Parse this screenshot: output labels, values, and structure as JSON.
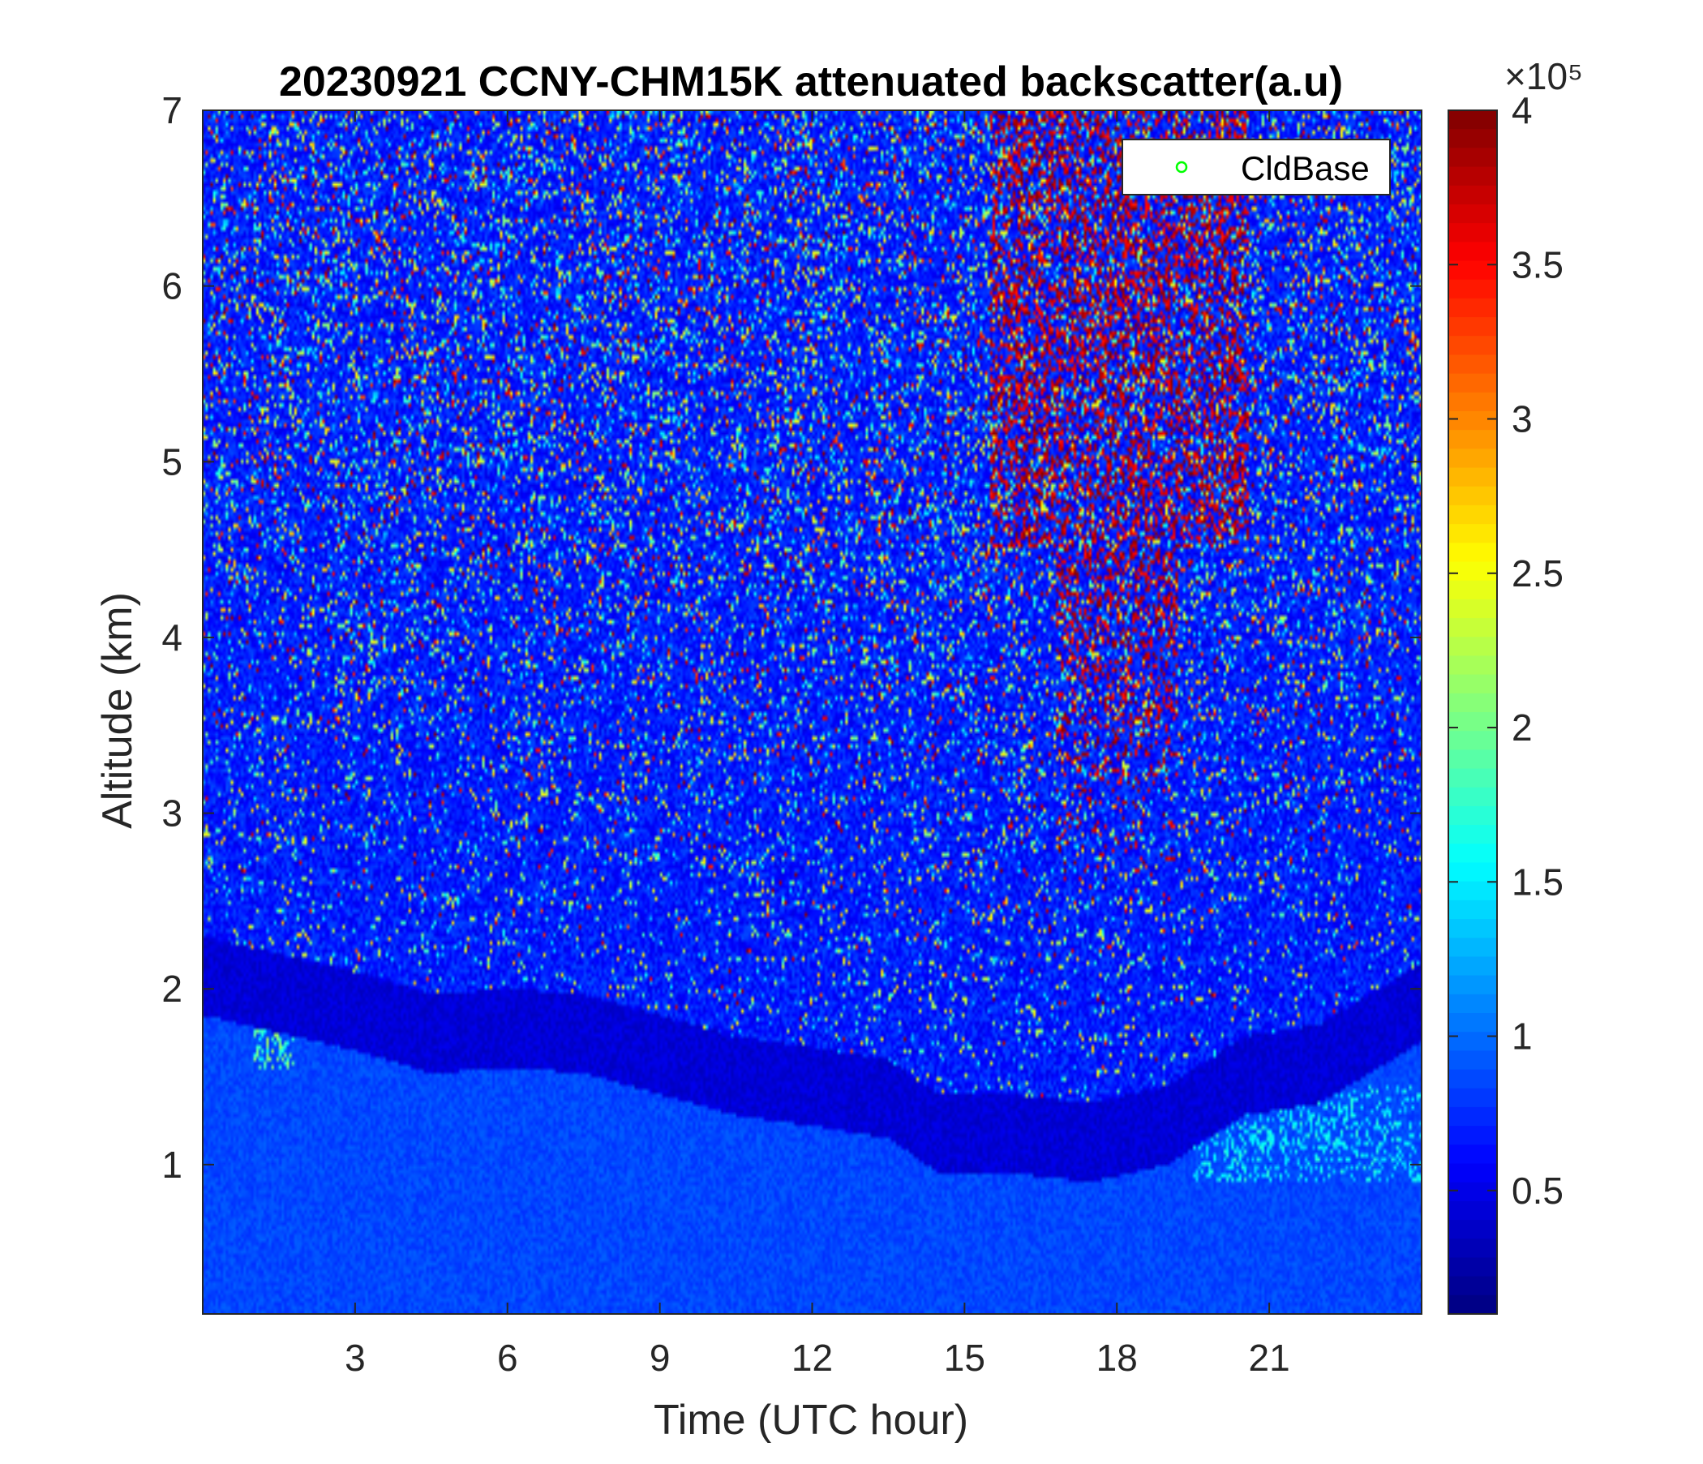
{
  "chart_data": {
    "type": "heatmap",
    "title": "20230921 CCNY-CHM15K attenuated backscatter(a.u)",
    "xlabel": "Time (UTC hour)",
    "ylabel": "Altitude (km)",
    "xlim": [
      0,
      24
    ],
    "ylim": [
      0.15,
      7
    ],
    "x_ticks": [
      3,
      6,
      9,
      12,
      15,
      18,
      21
    ],
    "x_tick_labels": [
      "3",
      "6",
      "9",
      "12",
      "15",
      "18",
      "21"
    ],
    "y_ticks": [
      1,
      2,
      3,
      4,
      5,
      6,
      7
    ],
    "y_tick_labels": [
      "1",
      "2",
      "3",
      "4",
      "5",
      "6",
      "7"
    ],
    "colormap": "jet",
    "colorbar": {
      "range": [
        0.1,
        4
      ],
      "exponent_label": "×10⁵",
      "ticks": [
        0.5,
        1,
        1.5,
        2,
        2.5,
        3,
        3.5,
        4
      ],
      "tick_labels": [
        "0.5",
        "1",
        "1.5",
        "2",
        "2.5",
        "3",
        "3.5",
        "4"
      ],
      "unit_scale": 100000
    },
    "legend": {
      "position": "top-right",
      "entries": [
        {
          "label": "CldBase",
          "marker": "circle",
          "color": "#00ff00"
        }
      ]
    },
    "features": {
      "boundary_layer_top_km": [
        [
          0,
          1.95
        ],
        [
          1.5,
          1.85
        ],
        [
          3,
          1.75
        ],
        [
          4.5,
          1.62
        ],
        [
          6,
          1.65
        ],
        [
          7.5,
          1.62
        ],
        [
          9,
          1.5
        ],
        [
          10.5,
          1.38
        ],
        [
          12,
          1.32
        ],
        [
          13.5,
          1.25
        ],
        [
          14.5,
          1.05
        ],
        [
          16,
          1.05
        ],
        [
          17.5,
          1.0
        ],
        [
          19,
          1.1
        ],
        [
          20.5,
          1.38
        ],
        [
          22,
          1.45
        ],
        [
          24,
          1.8
        ]
      ],
      "elevated_signal_region": {
        "x_range": [
          15.5,
          21
        ],
        "y_range_km": [
          2.5,
          7
        ],
        "description": "high backscatter"
      }
    }
  }
}
